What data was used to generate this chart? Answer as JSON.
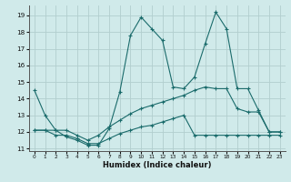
{
  "xlabel": "Humidex (Indice chaleur)",
  "xlim": [
    -0.5,
    23.5
  ],
  "ylim": [
    10.85,
    19.6
  ],
  "yticks": [
    11,
    12,
    13,
    14,
    15,
    16,
    17,
    18,
    19
  ],
  "xticks": [
    0,
    1,
    2,
    3,
    4,
    5,
    6,
    7,
    8,
    9,
    10,
    11,
    12,
    13,
    14,
    15,
    16,
    17,
    18,
    19,
    20,
    21,
    22,
    23
  ],
  "bg_color": "#d0eaea",
  "grid_color": "#b2cece",
  "line_color": "#1a6b6b",
  "line1_x": [
    0,
    1,
    2,
    3,
    4,
    5,
    6,
    7,
    8,
    9,
    10,
    11,
    12,
    13,
    14,
    15,
    16,
    17,
    18,
    19,
    20,
    21,
    22,
    23
  ],
  "line1_y": [
    14.5,
    13.0,
    12.1,
    11.7,
    11.5,
    11.2,
    11.2,
    12.2,
    14.4,
    17.8,
    18.9,
    18.2,
    17.5,
    14.7,
    14.6,
    15.3,
    17.3,
    19.2,
    18.2,
    14.6,
    14.6,
    13.3,
    12.0,
    12.0
  ],
  "line2_x": [
    0,
    1,
    2,
    3,
    4,
    5,
    6,
    7,
    8,
    9,
    10,
    11,
    12,
    13,
    14,
    15,
    16,
    17,
    18,
    19,
    20,
    21,
    22,
    23
  ],
  "line2_y": [
    12.1,
    12.1,
    12.1,
    12.1,
    11.8,
    11.5,
    11.8,
    12.3,
    12.7,
    13.1,
    13.4,
    13.6,
    13.8,
    14.0,
    14.2,
    14.5,
    14.7,
    14.6,
    14.6,
    13.4,
    13.2,
    13.2,
    12.0,
    12.0
  ],
  "line3_x": [
    0,
    1,
    2,
    3,
    4,
    5,
    6,
    7,
    8,
    9,
    10,
    11,
    12,
    13,
    14,
    15,
    16,
    17,
    18,
    19,
    20,
    21,
    22,
    23
  ],
  "line3_y": [
    12.1,
    12.1,
    11.8,
    11.8,
    11.6,
    11.3,
    11.3,
    11.6,
    11.9,
    12.1,
    12.3,
    12.4,
    12.6,
    12.8,
    13.0,
    11.8,
    11.8,
    11.8,
    11.8,
    11.8,
    11.8,
    11.8,
    11.8,
    11.8
  ]
}
